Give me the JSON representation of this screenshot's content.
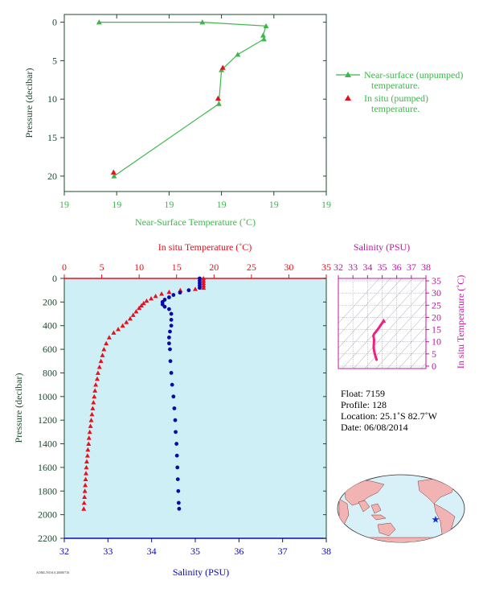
{
  "colors": {
    "green": "#3cb84a",
    "red": "#e8101c",
    "blue": "#0a0aa8",
    "magenta": "#c0189c",
    "pink": "#f0207f",
    "axis_dark": "#1e4a2e",
    "plot_bg": "#cfeff7"
  },
  "chart_data": [
    {
      "type": "line",
      "xlabel": "Near-Surface Temperature (˚C)",
      "ylabel": "Pressure (decibar)",
      "xticks": [
        "19",
        "19",
        "19",
        "19",
        "19",
        "19"
      ],
      "yticks": [
        "0",
        "5",
        "10",
        "15",
        "20"
      ],
      "ylim": [
        22,
        -1
      ],
      "legend_position": "right",
      "series": [
        {
          "name": "Near-surface (unpumped) temperature.",
          "marker": "triangle",
          "color": "green",
          "connected": true,
          "points": [
            [
              0.133,
              0.0
            ],
            [
              0.527,
              0.0
            ],
            [
              0.77,
              0.5
            ],
            [
              0.759,
              1.7
            ],
            [
              0.762,
              2.2
            ],
            [
              0.662,
              4.2
            ],
            [
              0.6,
              6.2
            ],
            [
              0.59,
              10.6
            ],
            [
              0.19,
              20.0
            ]
          ]
        },
        {
          "name": "In situ (pumped) temperature.",
          "marker": "triangle",
          "color": "red",
          "connected": false,
          "points": [
            [
              0.605,
              5.9
            ],
            [
              0.587,
              9.9
            ],
            [
              0.188,
              19.5
            ]
          ]
        }
      ]
    },
    {
      "type": "scatter",
      "xlabel": "Salinity (PSU)",
      "x2label": "In situ Temperature (˚C)",
      "ylabel": "Pressure (decibar)",
      "xlim": [
        32,
        38
      ],
      "x2lim": [
        0,
        35
      ],
      "ylim": [
        2200,
        0
      ],
      "xticks": [
        "32",
        "33",
        "34",
        "35",
        "36",
        "37",
        "38"
      ],
      "x2ticks": [
        "0",
        "5",
        "10",
        "15",
        "20",
        "25",
        "30",
        "35"
      ],
      "yticks": [
        "0",
        "200",
        "400",
        "600",
        "800",
        "1000",
        "1200",
        "1400",
        "1600",
        "1800",
        "2000",
        "2200"
      ],
      "series": [
        {
          "name": "In situ Temperature",
          "axis": "top",
          "color": "red",
          "marker": "triangle",
          "points": [
            [
              18.6,
              0
            ],
            [
              18.6,
              20
            ],
            [
              18.6,
              40
            ],
            [
              18.6,
              60
            ],
            [
              18.6,
              80
            ],
            [
              17.5,
              90
            ],
            [
              15.5,
              100
            ],
            [
              14.0,
              115
            ],
            [
              13.0,
              130
            ],
            [
              12.2,
              150
            ],
            [
              11.6,
              170
            ],
            [
              11.0,
              190
            ],
            [
              10.6,
              210
            ],
            [
              10.3,
              230
            ],
            [
              10.0,
              250
            ],
            [
              9.6,
              280
            ],
            [
              9.2,
              310
            ],
            [
              8.8,
              340
            ],
            [
              8.3,
              370
            ],
            [
              7.8,
              400
            ],
            [
              7.2,
              430
            ],
            [
              6.6,
              460
            ],
            [
              6.0,
              500
            ],
            [
              5.6,
              550
            ],
            [
              5.3,
              600
            ],
            [
              5.1,
              650
            ],
            [
              4.9,
              700
            ],
            [
              4.7,
              750
            ],
            [
              4.5,
              800
            ],
            [
              4.4,
              850
            ],
            [
              4.2,
              900
            ],
            [
              4.1,
              950
            ],
            [
              4.0,
              1000
            ],
            [
              3.9,
              1050
            ],
            [
              3.8,
              1100
            ],
            [
              3.7,
              1150
            ],
            [
              3.6,
              1200
            ],
            [
              3.5,
              1250
            ],
            [
              3.4,
              1300
            ],
            [
              3.3,
              1350
            ],
            [
              3.25,
              1400
            ],
            [
              3.15,
              1450
            ],
            [
              3.1,
              1500
            ],
            [
              3.0,
              1550
            ],
            [
              2.95,
              1600
            ],
            [
              2.9,
              1650
            ],
            [
              2.85,
              1700
            ],
            [
              2.8,
              1750
            ],
            [
              2.75,
              1800
            ],
            [
              2.7,
              1850
            ],
            [
              2.65,
              1900
            ],
            [
              2.6,
              1950
            ]
          ]
        },
        {
          "name": "Salinity",
          "axis": "bottom",
          "color": "blue",
          "marker": "circle",
          "points": [
            [
              35.1,
              0
            ],
            [
              35.1,
              20
            ],
            [
              35.1,
              40
            ],
            [
              35.1,
              60
            ],
            [
              35.1,
              80
            ],
            [
              34.85,
              100
            ],
            [
              34.65,
              120
            ],
            [
              34.5,
              140
            ],
            [
              34.4,
              160
            ],
            [
              34.3,
              180
            ],
            [
              34.25,
              200
            ],
            [
              34.25,
              220
            ],
            [
              34.3,
              240
            ],
            [
              34.4,
              260
            ],
            [
              34.45,
              300
            ],
            [
              34.45,
              350
            ],
            [
              34.45,
              400
            ],
            [
              34.42,
              450
            ],
            [
              34.4,
              500
            ],
            [
              34.4,
              550
            ],
            [
              34.42,
              600
            ],
            [
              34.43,
              700
            ],
            [
              34.45,
              800
            ],
            [
              34.47,
              900
            ],
            [
              34.5,
              1000
            ],
            [
              34.52,
              1100
            ],
            [
              34.54,
              1200
            ],
            [
              34.55,
              1300
            ],
            [
              34.57,
              1400
            ],
            [
              34.58,
              1500
            ],
            [
              34.59,
              1600
            ],
            [
              34.6,
              1700
            ],
            [
              34.61,
              1800
            ],
            [
              34.62,
              1900
            ],
            [
              34.63,
              1950
            ]
          ]
        }
      ]
    },
    {
      "type": "scatter",
      "title": "Salinity (PSU)",
      "ylabel": "In situ Temperature (˚C)",
      "xlim": [
        32,
        38
      ],
      "ylim": [
        -1,
        36
      ],
      "xticks": [
        "32",
        "33",
        "34",
        "35",
        "36",
        "37",
        "38"
      ],
      "yticks": [
        "0",
        "5",
        "10",
        "15",
        "20",
        "25",
        "30",
        "35"
      ],
      "series": [
        {
          "name": "T-S",
          "color": "pink",
          "points": [
            [
              34.62,
              2.6
            ],
            [
              34.6,
              3.0
            ],
            [
              34.57,
              3.6
            ],
            [
              34.54,
              4.2
            ],
            [
              34.5,
              5.0
            ],
            [
              34.46,
              6.0
            ],
            [
              34.43,
              7.2
            ],
            [
              34.42,
              8.3
            ],
            [
              34.44,
              9.6
            ],
            [
              34.45,
              10.6
            ],
            [
              34.43,
              11.6
            ],
            [
              34.4,
              12.4
            ],
            [
              34.45,
              13.2
            ],
            [
              34.6,
              14.3
            ],
            [
              34.75,
              15.5
            ],
            [
              34.9,
              16.8
            ],
            [
              35.1,
              18.6
            ]
          ]
        }
      ]
    }
  ],
  "legend": {
    "green_line1": "Near-surface (unpumped)",
    "green_line2": "temperature.",
    "red_line1": "In situ (pumped)",
    "red_line2": "temperature."
  },
  "info": {
    "float": "Float:  7159",
    "profile": "Profile:  128",
    "location": "Location:  25.1˚S  82.7˚W",
    "date": "Date:  06/08/2014"
  },
  "footer_text": "AOML/NOAA 20080716",
  "map": {
    "marker": "star",
    "marker_lon": -82.7,
    "marker_lat": -25.1
  }
}
